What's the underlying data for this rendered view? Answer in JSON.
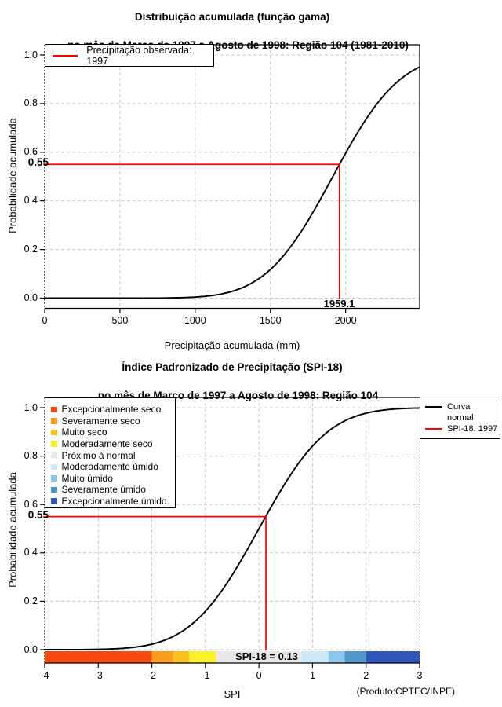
{
  "product_footnote": "(Produto:CPTEC/INPE)",
  "colors": {
    "observed_line": "#FF0000",
    "curve": "#000000",
    "grid_inner": "#C8C8C8",
    "grid_edge": "#333333",
    "annotation_text": "#000000"
  },
  "chart_data": [
    {
      "type": "line",
      "title": "Distribuição acumulada (função gama)",
      "subtitle": "no mês de Março de 1997 a Agosto de 1998: Região 104 (1981-2010)",
      "xlabel": "Precipitação acumulada (mm)",
      "ylabel": "Probabilidade acumulada",
      "xlim": [
        0,
        2492
      ],
      "ylim": [
        0,
        1
      ],
      "xtick_values": [
        0,
        500,
        1000,
        1500,
        2000
      ],
      "xtick_labels": [
        "0",
        "500",
        "1000",
        "1500",
        "2000"
      ],
      "ytick_values": [
        0.0,
        0.2,
        0.4,
        0.6,
        0.8,
        1.0
      ],
      "ytick_labels": [
        "0.0",
        "0.2",
        "0.4",
        "0.6",
        "0.8",
        "1.0"
      ],
      "grid": true,
      "legend": [
        {
          "label": "Precipitação observada: 1997",
          "color": "#FF0000"
        }
      ],
      "series": [
        {
          "name": "Distribuição gama acumulada",
          "model": "normal_cdf",
          "mean": 1915,
          "sd": 350,
          "color": "#000000"
        }
      ],
      "annotation": {
        "observed_precipitation_mm": 1959.1,
        "observed_probability": 0.55,
        "x_label": "1959.1",
        "y_label": "0.55",
        "color": "#FF0000"
      }
    },
    {
      "type": "line",
      "title": "Índice Padronizado de Precipitação (SPI-18)",
      "subtitle": "no mês de Março de 1997 a Agosto de 1998: Região 104",
      "xlabel": "SPI",
      "ylabel": "Probabilidade acumulada",
      "xlim": [
        -4,
        3
      ],
      "ylim": [
        0,
        1
      ],
      "xtick_values": [
        -4,
        -3,
        -2,
        -1,
        0,
        1,
        2,
        3
      ],
      "xtick_labels": [
        "-4",
        "-3",
        "-2",
        "-1",
        "0",
        "1",
        "2",
        "3"
      ],
      "ytick_values": [
        0.0,
        0.2,
        0.4,
        0.6,
        0.8,
        1.0
      ],
      "ytick_labels": [
        "0.0",
        "0.2",
        "0.4",
        "0.6",
        "0.8",
        "1.0"
      ],
      "grid": true,
      "legend": [
        {
          "label": "Curva normal",
          "color": "#000000"
        },
        {
          "label": "SPI-18: 1997",
          "color": "#FF0000"
        }
      ],
      "series": [
        {
          "name": "Curva normal",
          "model": "normal_cdf",
          "mean": 0,
          "sd": 1,
          "color": "#000000"
        }
      ],
      "categories": [
        {
          "label": "Excepcionalmente seco",
          "color": "#F8490E",
          "range": [
            -4.0,
            -2.0
          ]
        },
        {
          "label": "Severamente seco",
          "color": "#F99D1C",
          "range": [
            -2.0,
            -1.6
          ]
        },
        {
          "label": "Muito seco",
          "color": "#F9C21D",
          "range": [
            -1.6,
            -1.3
          ]
        },
        {
          "label": "Moderadamente seco",
          "color": "#FBF02C",
          "range": [
            -1.3,
            -0.8
          ]
        },
        {
          "label": "Próximo à normal",
          "color": "#E8E8E8",
          "range": [
            -0.8,
            0.8
          ]
        },
        {
          "label": "Moderadamente úmido",
          "color": "#CBE9F6",
          "range": [
            0.8,
            1.3
          ]
        },
        {
          "label": "Muito úmido",
          "color": "#8AC8EB",
          "range": [
            1.3,
            1.6
          ]
        },
        {
          "label": "Severamente úmido",
          "color": "#4E97C6",
          "range": [
            1.6,
            2.0
          ]
        },
        {
          "label": "Excepcionalmente úmido",
          "color": "#3056BE",
          "range": [
            2.0,
            3.0
          ]
        }
      ],
      "annotation": {
        "spi_value": 0.13,
        "observed_probability": 0.55,
        "text": "SPI-18 = 0.13",
        "y_label": "0.55",
        "color": "#FF0000"
      },
      "footnote": "(Produto:CPTEC/INPE)"
    }
  ]
}
